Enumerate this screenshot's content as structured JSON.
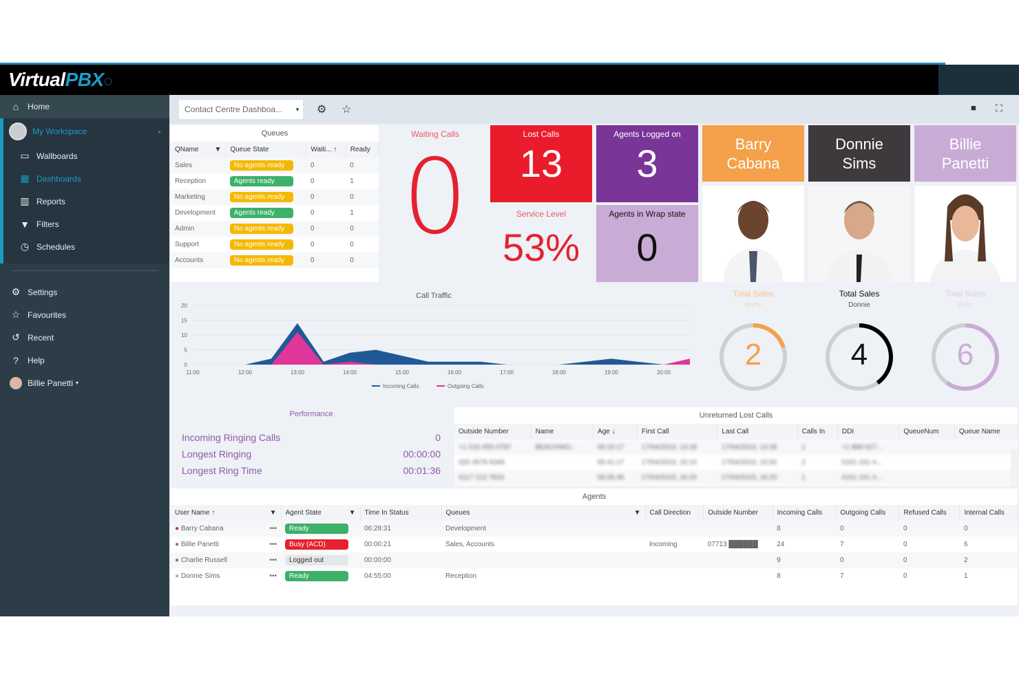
{
  "app": {
    "logo_a": "Virtual",
    "logo_b": "PBX"
  },
  "sidebar": {
    "home": "Home",
    "workspace": "My Workspace",
    "workspace_items": [
      {
        "label": "Wallboards",
        "icon": "wallboard-icon"
      },
      {
        "label": "Dashboards",
        "icon": "dashboard-icon",
        "active": true
      },
      {
        "label": "Reports",
        "icon": "report-icon"
      },
      {
        "label": "Filters",
        "icon": "filter-icon"
      },
      {
        "label": "Schedules",
        "icon": "clock-icon"
      }
    ],
    "settings": "Settings",
    "favourites": "Favourites",
    "recent": "Recent",
    "help": "Help",
    "user": "Billie Panetti"
  },
  "toolbar": {
    "dashboard_select": "Contact Centre Dashboa...",
    "dropdown_arrow": "▾",
    "gear": "⚙",
    "star": "☆",
    "lock": "🔒",
    "fullscreen": "⛶"
  },
  "queues": {
    "title": "Queues",
    "headers": [
      "QName",
      "Queue State",
      "Waiti... ↑",
      "Ready"
    ],
    "rows": [
      {
        "name": "Sales",
        "state": "No agents ready",
        "state_color": "yellow",
        "waiting": "0",
        "ready": "0"
      },
      {
        "name": "Reception",
        "state": "Agents ready",
        "state_color": "green",
        "waiting": "0",
        "ready": "1"
      },
      {
        "name": "Marketing",
        "state": "No agents ready",
        "state_color": "yellow",
        "waiting": "0",
        "ready": "0"
      },
      {
        "name": "Development",
        "state": "Agents ready",
        "state_color": "green",
        "waiting": "0",
        "ready": "1"
      },
      {
        "name": "Admin",
        "state": "No agents ready",
        "state_color": "yellow",
        "waiting": "0",
        "ready": "0"
      },
      {
        "name": "Support",
        "state": "No agents ready",
        "state_color": "yellow",
        "waiting": "0",
        "ready": "0"
      },
      {
        "name": "Accounts",
        "state": "No agents ready",
        "state_color": "yellow",
        "waiting": "0",
        "ready": "0"
      }
    ]
  },
  "kpis": {
    "waiting_calls": {
      "label": "Waiting Calls",
      "value": "0",
      "color": "#e5212f"
    },
    "lost_calls": {
      "label": "Lost Calls",
      "value": "13",
      "color": "#ea1c2b"
    },
    "agents_logged_on": {
      "label": "Agents Logged on",
      "value": "3",
      "color": "#7a3598"
    },
    "service_level": {
      "label": "Service Level",
      "value": "53%",
      "color": "#e5212f"
    },
    "agents_wrap": {
      "label": "Agents in Wrap state",
      "value": "0",
      "color": "#c9acd6"
    }
  },
  "agents_cards": [
    {
      "name_line1": "Barry",
      "name_line2": "Cabana",
      "color": "#f5a04a",
      "sales_label": "Total Sales",
      "sales_sub": "Barry",
      "sales": "2",
      "ring_pct": 0.2
    },
    {
      "name_line1": "Donnie",
      "name_line2": "Sims",
      "color": "#3e393c",
      "sales_label": "Total Sales",
      "sales_sub": "Donnie",
      "sales": "4",
      "ring_pct": 0.4
    },
    {
      "name_line1": "Billie",
      "name_line2": "Panetti",
      "color": "#c9acd6",
      "sales_label": "Total Sales",
      "sales_sub": "Billie",
      "sales": "6",
      "ring_pct": 0.6
    }
  ],
  "chart_data": {
    "type": "area",
    "title": "Call Traffic",
    "x": [
      "11:00",
      "11:30",
      "12:00",
      "12:30",
      "13:00",
      "13:30",
      "14:00",
      "14:30",
      "15:00",
      "15:30",
      "16:00",
      "16:30",
      "17:00",
      "17:30",
      "18:00",
      "18:30",
      "19:00",
      "19:30",
      "20:00",
      "20:30"
    ],
    "series": [
      {
        "name": "Incoming Calls",
        "color": "#1f5a96",
        "values": [
          0,
          0,
          0,
          2,
          14,
          1,
          4,
          5,
          3,
          1,
          1,
          1,
          0,
          0,
          0,
          1,
          2,
          1,
          0,
          0
        ]
      },
      {
        "name": "Outgoing Calls",
        "color": "#e0359a",
        "values": [
          0,
          0,
          0,
          0,
          11,
          0,
          1,
          0,
          0,
          0,
          0,
          0,
          0,
          0,
          0,
          0,
          0,
          0,
          0,
          2
        ]
      }
    ],
    "ylim": [
      0,
      20
    ],
    "yticks": [
      0,
      5,
      10,
      15,
      20
    ],
    "xticks": [
      "11:00",
      "12:00",
      "13:00",
      "14:00",
      "15:00",
      "16:00",
      "17:00",
      "18:00",
      "19:00",
      "20:00"
    ],
    "legend_position": "bottom",
    "grid": true
  },
  "performance": {
    "title": "Performance",
    "rows": [
      {
        "label": "Incoming Ringing Calls",
        "value": "0"
      },
      {
        "label": "Longest Ringing",
        "value": "00:00:00"
      },
      {
        "label": "Longest Ring Time",
        "value": "00:01:36"
      }
    ]
  },
  "lost_calls_table": {
    "title": "Unreturned Lost Calls",
    "headers": [
      "Outside Number",
      "Name",
      "Age ↓",
      "First Call",
      "Last Call",
      "Calls In",
      "DDI",
      "QueueNum",
      "Queue Name"
    ],
    "rows": [
      [
        "+1 216-455-0787",
        "BEACHWO...",
        "06:23:17",
        "17/04/2023, 14:28",
        "17/04/2023, 14:28",
        "1",
        "+1 888-527...",
        "",
        ""
      ],
      [
        "020 4579 9349",
        "",
        "05:41:17",
        "17/04/2023, 15:10",
        "17/04/2023, 15:52",
        "2",
        "0161 241 4...",
        "",
        ""
      ],
      [
        "0117 213 7833",
        "",
        "06:05:46",
        "17/04/2023, 16:20",
        "17/04/2023, 16:20",
        "1",
        "0161 241 4...",
        "",
        ""
      ]
    ]
  },
  "agents_table": {
    "title": "Agents",
    "headers": [
      "User Name ↑",
      "Agent State",
      "Time In Status",
      "Queues",
      "Call Direction",
      "Outside Number",
      "Incoming Calls",
      "Outgoing Calls",
      "Refused Calls",
      "Internal Calls"
    ],
    "rows": [
      {
        "name": "Barry Cabana",
        "state": "Ready",
        "state_color": "green",
        "time": "06:28:31",
        "queues": "Development",
        "direction": "",
        "outside": "",
        "incoming": "8",
        "outgoing": "0",
        "refused": "0",
        "internal": "0"
      },
      {
        "name": "Billie Panetti",
        "state": "Busy (ACD)",
        "state_color": "red",
        "time": "00:00:21",
        "queues": "Sales, Accounts",
        "direction": "Incoming",
        "outside": "07713 ██████",
        "incoming": "24",
        "outgoing": "7",
        "refused": "0",
        "internal": "6"
      },
      {
        "name": "Charlie Russell",
        "state": "Logged out",
        "state_color": "grey",
        "time": "00:00:00",
        "queues": "",
        "direction": "",
        "outside": "",
        "incoming": "9",
        "outgoing": "0",
        "refused": "0",
        "internal": "2"
      },
      {
        "name": "Donnie Sims",
        "state": "Ready",
        "state_color": "green",
        "time": "04:55:00",
        "queues": "Reception",
        "direction": "",
        "outside": "",
        "incoming": "8",
        "outgoing": "7",
        "refused": "0",
        "internal": "1"
      }
    ],
    "more": "•••"
  }
}
